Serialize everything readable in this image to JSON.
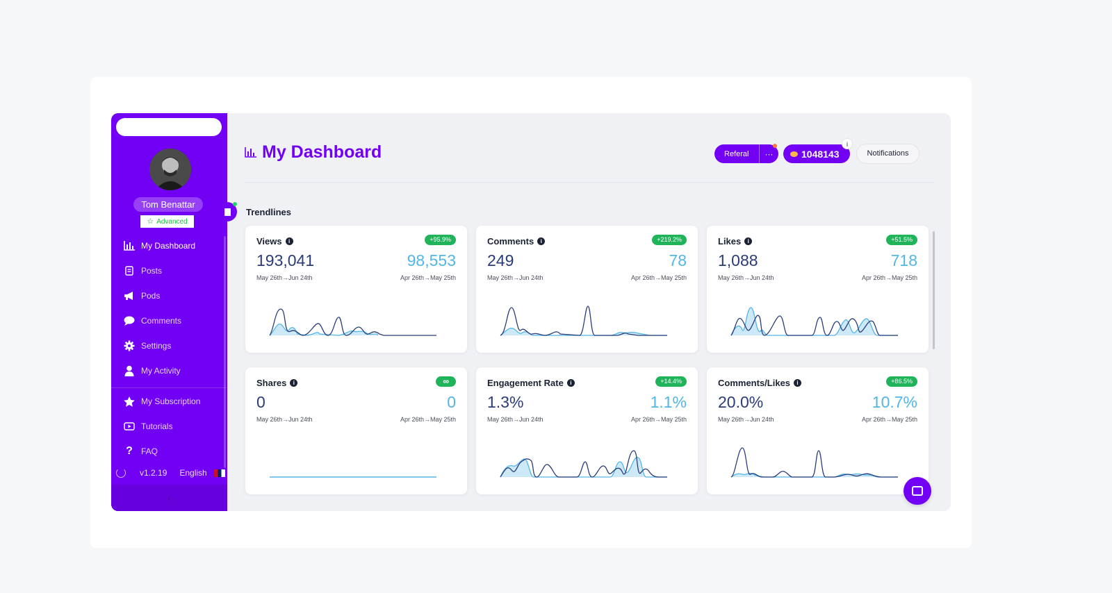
{
  "sidebar": {
    "user_name": "Tom Benattar",
    "plan": "Advanced",
    "nav": [
      {
        "label": "My Dashboard",
        "icon": "bar-chart-icon"
      },
      {
        "label": "Posts",
        "icon": "document-icon"
      },
      {
        "label": "Pods",
        "icon": "megaphone-icon"
      },
      {
        "label": "Comments",
        "icon": "speech-bubble-icon"
      },
      {
        "label": "Settings",
        "icon": "gear-icon"
      },
      {
        "label": "My Activity",
        "icon": "person-icon"
      },
      {
        "label": "My Subscription",
        "icon": "star-icon"
      },
      {
        "label": "Tutorials",
        "icon": "play-icon"
      },
      {
        "label": "FAQ",
        "icon": "question-icon"
      }
    ],
    "version": "v1.2.19",
    "language": "English",
    "collapse_glyph": "‹"
  },
  "header": {
    "title": "My Dashboard",
    "referral_label": "Referal",
    "referral_more": "···",
    "coins": "1048143",
    "coins_info": "i",
    "notifications_label": "Notifications"
  },
  "section_title": "Trendlines",
  "info_glyph": "i",
  "colors": {
    "brand": "#7200f5",
    "current": "#2a3c7a",
    "previous": "#52b6e6",
    "positive": "#1fb35a"
  },
  "cards": [
    {
      "name": "Views",
      "delta": "+95.9%",
      "current": "193,041",
      "previous": "98,553",
      "current_range": "May 26th→Jun 24th",
      "previous_range": "Apr 26th→May 25th"
    },
    {
      "name": "Comments",
      "delta": "+219.2%",
      "current": "249",
      "previous": "78",
      "current_range": "May 26th→Jun 24th",
      "previous_range": "Apr 26th→May 25th"
    },
    {
      "name": "Likes",
      "delta": "+51.5%",
      "current": "1,088",
      "previous": "718",
      "current_range": "May 26th→Jun 24th",
      "previous_range": "Apr 26th→May 25th"
    },
    {
      "name": "Shares",
      "delta": "∞",
      "current": "0",
      "previous": "0",
      "current_range": "May 26th→Jun 24th",
      "previous_range": "Apr 26th→May 25th"
    },
    {
      "name": "Engagement Rate",
      "delta": "+14.4%",
      "current": "1.3%",
      "previous": "1.1%",
      "current_range": "May 26th→Jun 24th",
      "previous_range": "Apr 26th→May 25th"
    },
    {
      "name": "Comments/Likes",
      "delta": "+86.5%",
      "current": "20.0%",
      "previous": "10.7%",
      "current_range": "May 26th→Jun 24th",
      "previous_range": "Apr 26th→May 25th"
    }
  ]
}
